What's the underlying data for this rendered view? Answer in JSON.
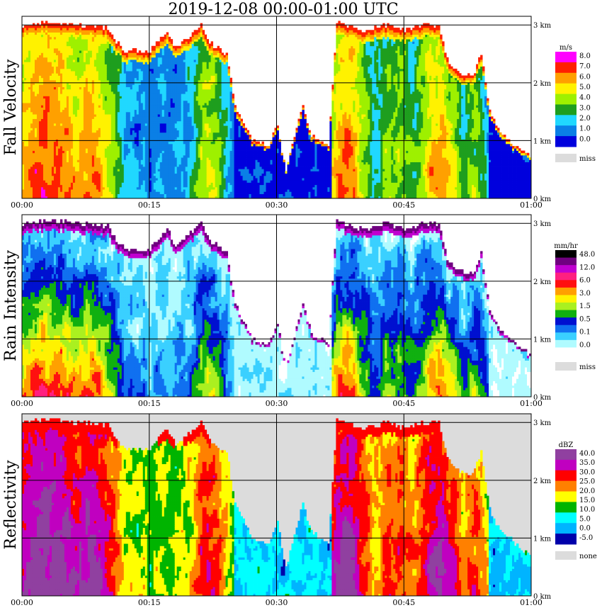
{
  "title": "2019-12-08   00:00-01:00 UTC",
  "colors": {
    "missing": "#dcdcdc",
    "velocity": [
      "#0000dd",
      "#0a7fe6",
      "#20d8ff",
      "#1e9e1e",
      "#9ef000",
      "#fff200",
      "#ffa000",
      "#ff2000",
      "#ff00ff"
    ],
    "rain": [
      "#ffffff",
      "#b0fbff",
      "#3ad0ff",
      "#1070f0",
      "#0010d0",
      "#10b010",
      "#aaf020",
      "#fff200",
      "#ffa000",
      "#ff1010",
      "#ff2080",
      "#c000d0",
      "#700080",
      "#000000"
    ],
    "reflectivity": [
      "#0000aa",
      "#00b4ff",
      "#00ffff",
      "#00b400",
      "#ffff00",
      "#ff8000",
      "#ff0000",
      "#c000c0",
      "#9040a0"
    ]
  },
  "chart_data": [
    {
      "type": "heatmap",
      "name": "velocity",
      "ylabel": "Fall Velocity",
      "x_ticks": [
        "00:00",
        "00:15",
        "00:30",
        "00:45",
        "01:00"
      ],
      "y_ticks": [
        "0 km",
        "1 km",
        "2 km",
        "3 km"
      ],
      "xlim_min": [
        0,
        60
      ],
      "ylim_km": [
        0,
        3.15
      ],
      "legend_unit": "m/s",
      "legend": [
        "8.0",
        "7.0",
        "6.0",
        "5.0",
        "4.0",
        "3.0",
        "2.0",
        "1.0",
        "0.0"
      ],
      "legend_missing": "miss",
      "grid": true
    },
    {
      "type": "heatmap",
      "name": "rain",
      "ylabel": "Rain Intensity",
      "x_ticks": [
        "00:00",
        "00:15",
        "00:30",
        "00:45",
        "01:00"
      ],
      "y_ticks": [
        "0 km",
        "1 km",
        "2 km",
        "3 km"
      ],
      "xlim_min": [
        0,
        60
      ],
      "ylim_km": [
        0,
        3.15
      ],
      "legend_unit": "mm/hr",
      "legend": [
        "48.0",
        "12.0",
        "6.0",
        "3.0",
        "1.5",
        "0.5",
        "0.1",
        "0.0"
      ],
      "legend_missing": "miss",
      "grid": true
    },
    {
      "type": "heatmap",
      "name": "reflectivity",
      "ylabel": "Reflectivity",
      "x_ticks": [
        "00:00",
        "00:15",
        "00:30",
        "00:45",
        "01:00"
      ],
      "y_ticks": [
        "0 km",
        "1 km",
        "2 km",
        "3 km"
      ],
      "xlim_min": [
        0,
        60
      ],
      "ylim_km": [
        0,
        3.15
      ],
      "legend_unit": "dBZ",
      "legend": [
        "40.0",
        "35.0",
        "30.0",
        "25.0",
        "20.0",
        "15.0",
        "10.0",
        "5.0",
        "0.0",
        "-5.0"
      ],
      "legend_missing": "none",
      "grid": true
    }
  ]
}
